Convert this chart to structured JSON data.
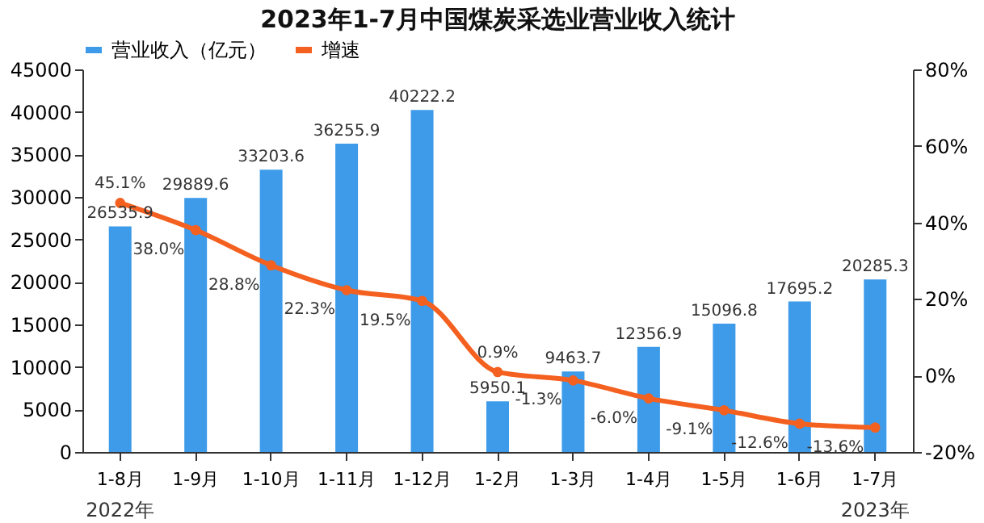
{
  "chart_data": {
    "type": "bar",
    "title": "2023年1-7月中国煤炭采选业营业收入统计",
    "categories": [
      "1-8月",
      "1-9月",
      "1-10月",
      "1-11月",
      "1-12月",
      "1-2月",
      "1-3月",
      "1-4月",
      "1-5月",
      "1-6月",
      "1-7月"
    ],
    "series": [
      {
        "name": "营业收入（亿元）",
        "color": "#3d9be9",
        "values": [
          26535.9,
          29889.6,
          33203.6,
          36255.9,
          40222.2,
          5950.1,
          9463.7,
          12356.9,
          15096.8,
          17695.2,
          20285.3
        ]
      },
      {
        "name": "增速",
        "type": "line",
        "axis": "y2",
        "color": "#f4601f",
        "marker": "circle",
        "line_style": "solid",
        "values": [
          45.1,
          38.0,
          28.8,
          22.3,
          19.5,
          0.9,
          -1.3,
          -6.0,
          -9.1,
          -12.6,
          -13.6
        ],
        "value_labels": [
          "45.1%",
          "38.0%",
          "28.8%",
          "22.3%",
          "19.5%",
          "0.9%",
          "-1.3%",
          "-6.0%",
          "-9.1%",
          "-12.6%",
          "-13.6%"
        ]
      }
    ],
    "ylim": [
      0,
      45000
    ],
    "yticks": [
      0,
      5000,
      10000,
      15000,
      20000,
      25000,
      30000,
      35000,
      40000,
      45000
    ],
    "y2lim": [
      -20,
      80
    ],
    "y2ticks": [
      {
        "value": -20,
        "label": "-20%"
      },
      {
        "value": 0,
        "label": "0%"
      },
      {
        "value": 20,
        "label": "20%"
      },
      {
        "value": 40,
        "label": "40%"
      },
      {
        "value": 60,
        "label": "60%"
      },
      {
        "value": 80,
        "label": "80%"
      }
    ],
    "data_labels": true,
    "grid": false,
    "legend": "top",
    "annotations": [
      "2022年",
      "2023年"
    ]
  }
}
